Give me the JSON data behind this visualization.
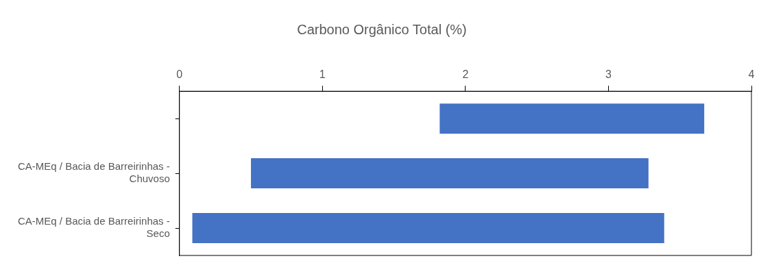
{
  "chart_data": {
    "type": "bar",
    "orientation": "horizontal",
    "title": "Carbono Orgânico Total (%)",
    "categories": [
      null,
      "CA-MEq / Bacia de Barreirinhas - Chuvoso",
      "CA-MEq / Bacia de Barreirinhas - Seco"
    ],
    "base": [
      1.82,
      0.5,
      0.09
    ],
    "values": [
      1.85,
      2.78,
      3.3
    ],
    "color": "#4472c4",
    "xlim": [
      0,
      4
    ],
    "xticks": [
      0,
      1,
      2,
      3,
      4
    ],
    "grid": false,
    "legend": false
  }
}
